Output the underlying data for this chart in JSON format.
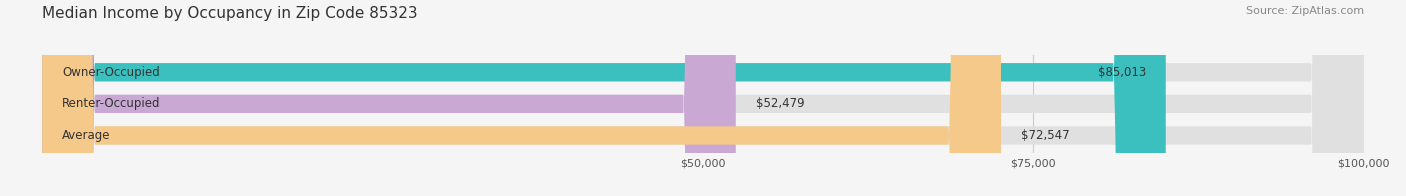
{
  "title": "Median Income by Occupancy in Zip Code 85323",
  "source": "Source: ZipAtlas.com",
  "categories": [
    "Owner-Occupied",
    "Renter-Occupied",
    "Average"
  ],
  "values": [
    85013,
    52479,
    72547
  ],
  "labels": [
    "$85,013",
    "$52,479",
    "$72,547"
  ],
  "bar_colors": [
    "#3bbfbf",
    "#c9a8d4",
    "#f5c98a"
  ],
  "bar_bg_color": "#e0e0e0",
  "xlim": [
    0,
    100000
  ],
  "xticks": [
    50000,
    75000,
    100000
  ],
  "xticklabels": [
    "$50,000",
    "$75,000",
    "$100,000"
  ],
  "title_fontsize": 11,
  "source_fontsize": 8,
  "label_fontsize": 8.5,
  "bar_height": 0.58,
  "figsize": [
    14.06,
    1.96
  ],
  "dpi": 100,
  "bg_color": "#f5f5f5"
}
